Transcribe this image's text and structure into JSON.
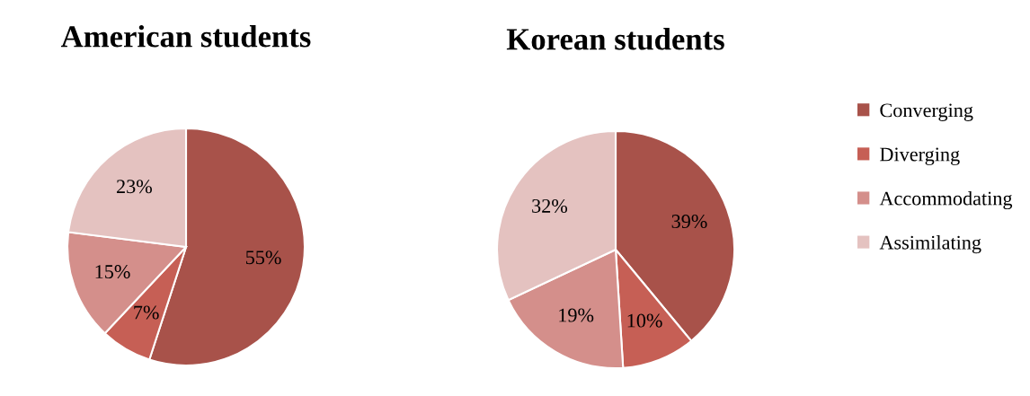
{
  "chart_data": [
    {
      "type": "pie",
      "title": "American students",
      "categories": [
        "Converging",
        "Diverging",
        "Accommodating",
        "Assimilating"
      ],
      "values": [
        55,
        7,
        15,
        23
      ],
      "value_labels": [
        "55%",
        "7%",
        "15%",
        "23%"
      ],
      "colors": [
        "#a8524a",
        "#c65f55",
        "#d48f8b",
        "#e4c2c0"
      ],
      "legend": "right"
    },
    {
      "type": "pie",
      "title": "Korean students",
      "categories": [
        null,
        null,
        null,
        null
      ],
      "values": [
        39,
        10,
        19,
        32
      ],
      "value_labels": [
        "39%",
        "10%",
        "19%",
        "32%"
      ],
      "colors": [
        "#a8524a",
        "#c65f55",
        "#d48f8b",
        "#e4c2c0"
      ],
      "legend": false
    }
  ]
}
